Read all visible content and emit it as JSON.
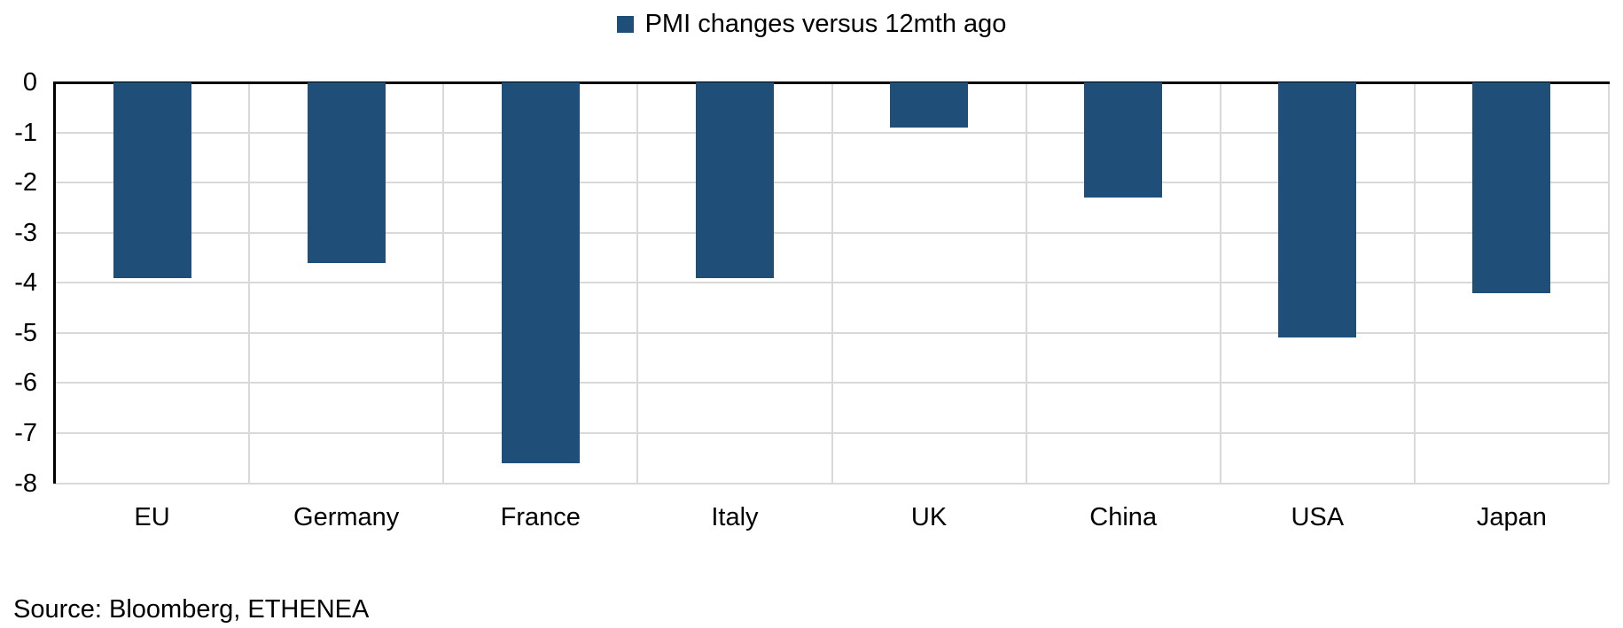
{
  "chart_data": {
    "type": "bar",
    "title": "",
    "legend_label": "PMI changes versus 12mth ago",
    "legend_position": "top-center",
    "categories": [
      "EU",
      "Germany",
      "France",
      "Italy",
      "UK",
      "China",
      "USA",
      "Japan"
    ],
    "values": [
      -3.9,
      -3.6,
      -7.6,
      -3.9,
      -0.9,
      -2.3,
      -5.1,
      -4.2
    ],
    "ylim": [
      -8,
      0
    ],
    "yticks": [
      0,
      -1,
      -2,
      -3,
      -4,
      -5,
      -6,
      -7,
      -8
    ],
    "grid": true,
    "bar_color": "#1F4E79",
    "gridline_color": "#D9D9D9",
    "axis_color": "#000000"
  },
  "source": {
    "text": "Source: Bloomberg, ETHENEA"
  }
}
